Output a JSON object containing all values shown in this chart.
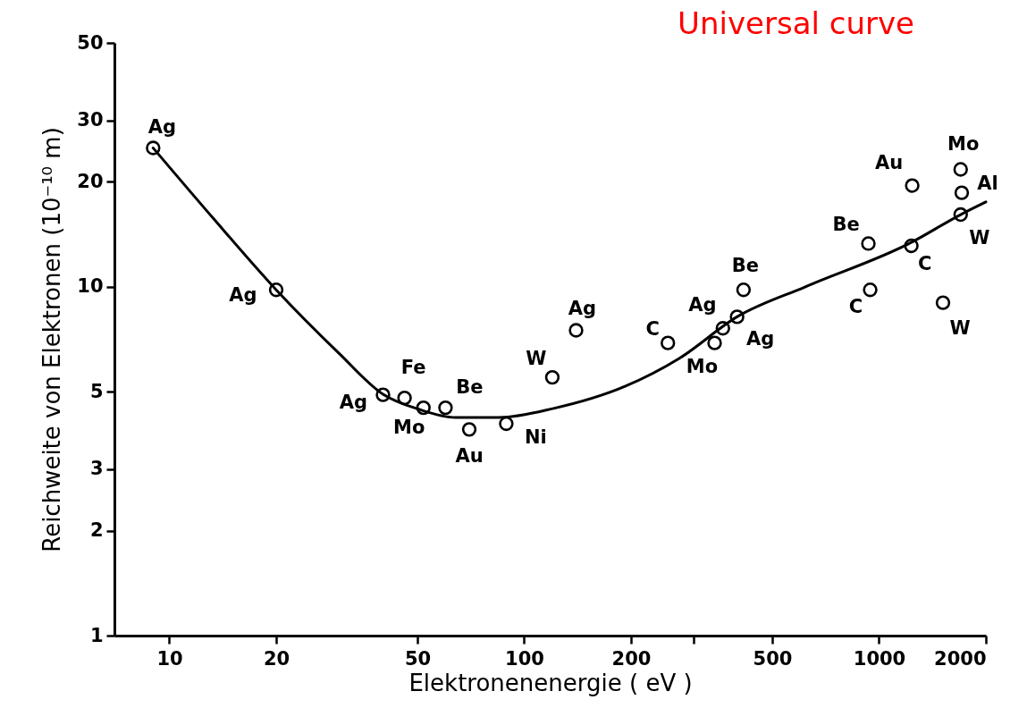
{
  "chart_data": {
    "type": "scatter",
    "title": "Universal curve",
    "xlabel": "Elektronenenergie ( eV )",
    "ylabel": "Reichweite von Elektronen  (10⁻¹⁰ m)",
    "log": "xy",
    "grid": false,
    "legend": false,
    "xlim": [
      7,
      2000
    ],
    "xticks": [
      10,
      20,
      50,
      100,
      200,
      {
        "value": 300,
        "label": null
      },
      500,
      1000,
      2000
    ],
    "ylim": [
      1,
      50
    ],
    "yticks": [
      1,
      2,
      3,
      5,
      10,
      20,
      30,
      50
    ],
    "series": [
      {
        "marker": "circle",
        "color": "#000000",
        "x": [
          9,
          20,
          40,
          46,
          52,
          60,
          70,
          89,
          120,
          140,
          254,
          344,
          363,
          398,
          415,
          933,
          944,
          1233,
          1240,
          1698,
          1710,
          1698,
          1514
        ],
        "values": [
          25,
          9.8,
          4.9,
          4.8,
          4.5,
          4.5,
          3.9,
          4.05,
          5.5,
          7.5,
          6.9,
          6.9,
          7.6,
          8.2,
          9.8,
          13.3,
          9.8,
          13.1,
          19.5,
          21.7,
          18.6,
          16.1,
          9.0
        ]
      },
      {
        "type": "line",
        "marker": "none",
        "line_style": "solid",
        "color": "#000000",
        "x": [
          9,
          13.3,
          20,
          30,
          40,
          50.6,
          64,
          85,
          121,
          193,
          274,
          398,
          620,
          1233,
          1698,
          2000
        ],
        "values": [
          25,
          15.7,
          9.8,
          6.46,
          4.92,
          4.45,
          4.22,
          4.22,
          4.48,
          5.19,
          6.24,
          8.2,
          10.0,
          13.4,
          16.1,
          17.5
        ]
      }
    ],
    "annotations": [
      {
        "text": "Ag",
        "x": 9,
        "y": 25
      },
      {
        "text": "Ag",
        "x": 20,
        "y": 9.8
      },
      {
        "text": "Ag",
        "x": 40,
        "y": 4.9
      },
      {
        "text": "Fe",
        "x": 46,
        "y": 4.8
      },
      {
        "text": "Mo",
        "x": 52,
        "y": 4.5
      },
      {
        "text": "Be",
        "x": 60,
        "y": 4.5
      },
      {
        "text": "Au",
        "x": 70,
        "y": 3.9
      },
      {
        "text": "Ni",
        "x": 89,
        "y": 4.05
      },
      {
        "text": "W",
        "x": 120,
        "y": 5.5
      },
      {
        "text": "Ag",
        "x": 140,
        "y": 7.5
      },
      {
        "text": "C",
        "x": 254,
        "y": 6.9
      },
      {
        "text": "Mo",
        "x": 344,
        "y": 6.9
      },
      {
        "text": "Ag",
        "x": 363,
        "y": 7.6
      },
      {
        "text": "Ag",
        "x": 398,
        "y": 8.2
      },
      {
        "text": "Be",
        "x": 415,
        "y": 9.8
      },
      {
        "text": "Be",
        "x": 933,
        "y": 13.3
      },
      {
        "text": "C",
        "x": 944,
        "y": 9.8
      },
      {
        "text": "C",
        "x": 1233,
        "y": 13.1
      },
      {
        "text": "Au",
        "x": 1240,
        "y": 19.5
      },
      {
        "text": "Mo",
        "x": 1698,
        "y": 21.7
      },
      {
        "text": "Al",
        "x": 1710,
        "y": 18.6
      },
      {
        "text": "W",
        "x": 1698,
        "y": 16.1
      },
      {
        "text": "W",
        "x": 1514,
        "y": 9.0
      }
    ]
  }
}
